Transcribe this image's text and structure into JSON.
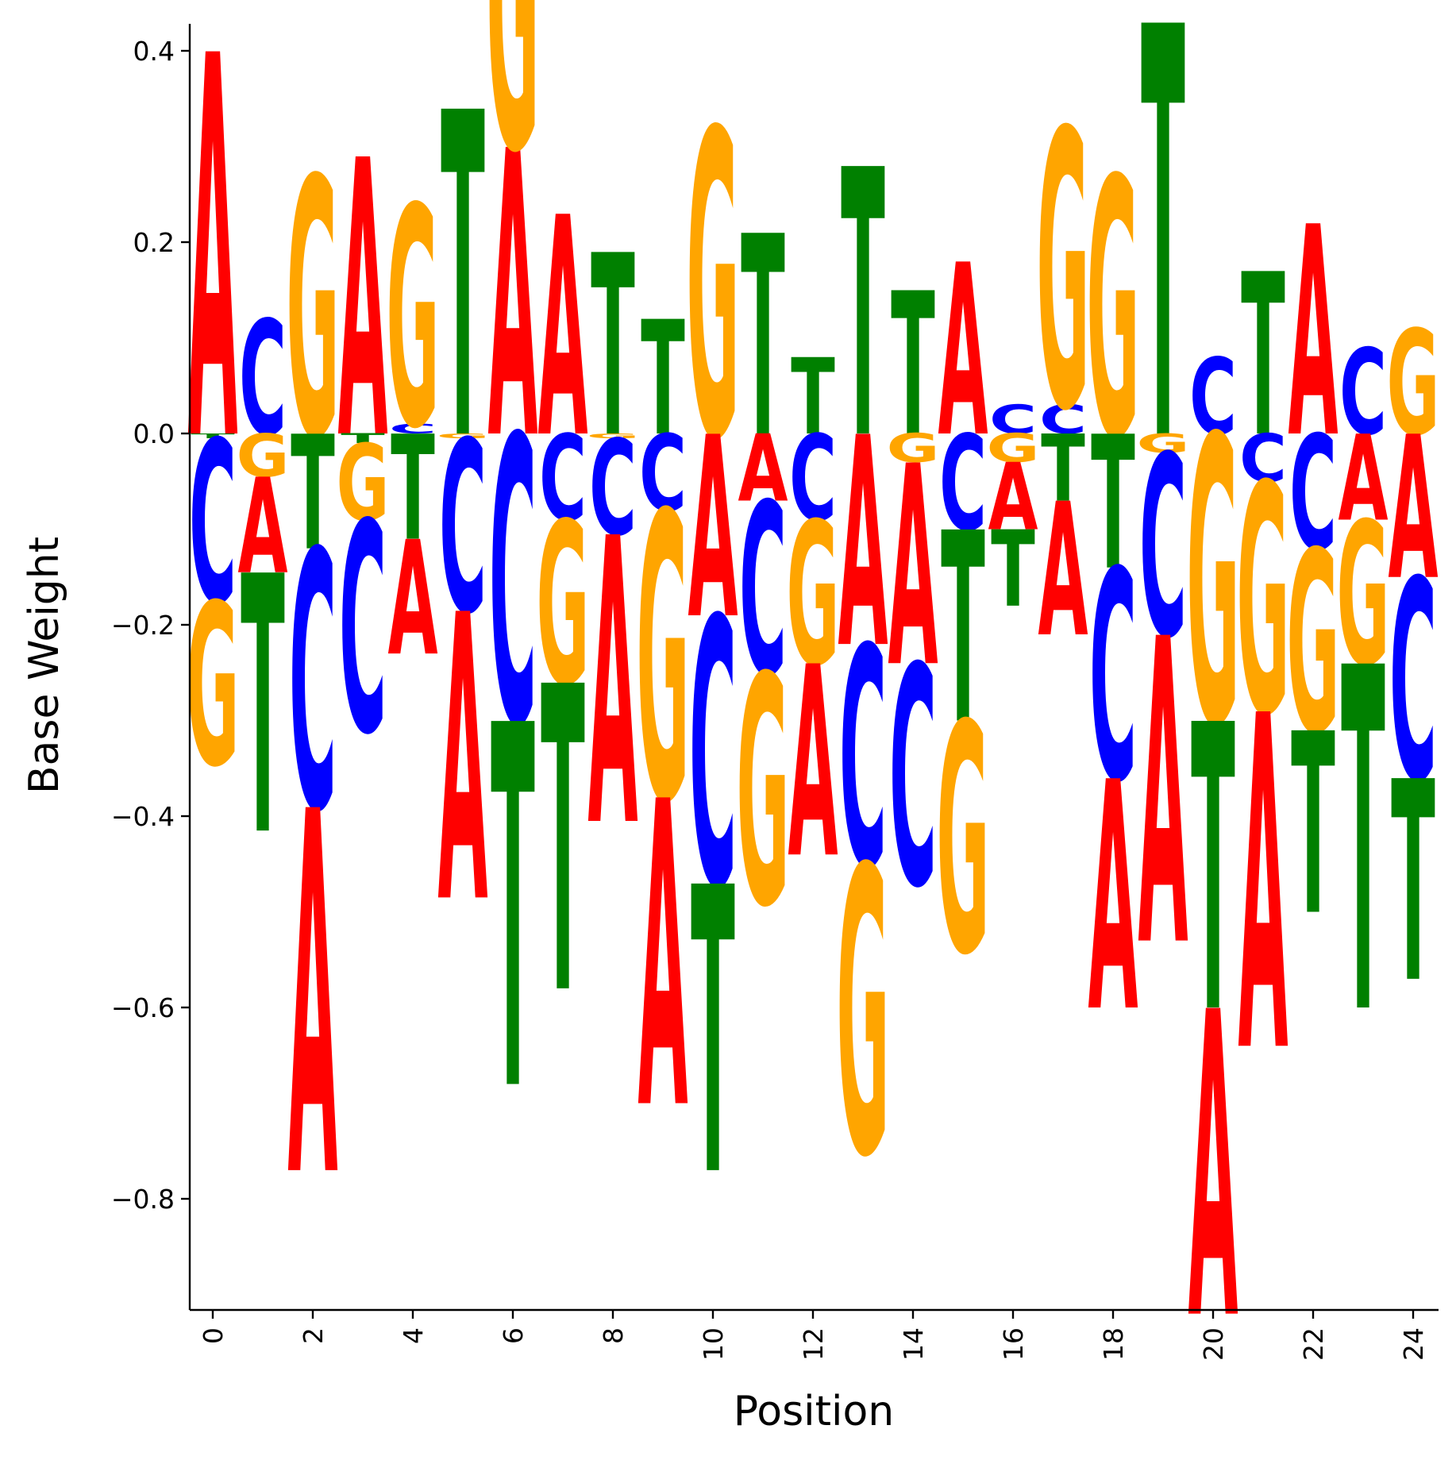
{
  "chart_data": {
    "type": "sequence-logo",
    "title": "",
    "xlabel": "Position",
    "ylabel": "Base Weight",
    "ylim": [
      -0.92,
      0.43
    ],
    "xlim": [
      -0.5,
      24.5
    ],
    "xticks": [
      "0",
      "2",
      "4",
      "6",
      "8",
      "10",
      "12",
      "14",
      "16",
      "18",
      "20",
      "22",
      "24"
    ],
    "yticks": [
      "0.4",
      "0.2",
      "0.0",
      "−0.2",
      "−0.4",
      "−0.6",
      "−0.8"
    ],
    "colors": {
      "A": "#ff0000",
      "C": "#0000ff",
      "G": "#ffa500",
      "T": "#008000"
    },
    "positions": [
      {
        "A": 0.4,
        "C": -0.17,
        "G": -0.17,
        "T": -0.005
      },
      {
        "A": -0.1,
        "C": 0.12,
        "G": -0.045,
        "T": -0.27
      },
      {
        "A": -0.38,
        "C": -0.27,
        "G": 0.27,
        "T": -0.12
      },
      {
        "A": 0.29,
        "C": -0.22,
        "G": -0.08,
        "T": -0.01
      },
      {
        "A": -0.12,
        "C": 0.01,
        "G": 0.23,
        "T": -0.11
      },
      {
        "A": -0.3,
        "C": -0.18,
        "G": -0.005,
        "T": 0.34
      },
      {
        "A": 0.3,
        "C": -0.3,
        "G": 0.3,
        "T": -0.38
      },
      {
        "A": 0.23,
        "C": -0.09,
        "G": -0.17,
        "T": -0.32
      },
      {
        "A": -0.3,
        "C": -0.1,
        "G": -0.005,
        "T": 0.19
      },
      {
        "A": -0.32,
        "C": -0.08,
        "G": -0.3,
        "T": 0.12
      },
      {
        "A": -0.19,
        "C": -0.28,
        "G": 0.32,
        "T": -0.3
      },
      {
        "A": -0.07,
        "C": -0.18,
        "G": -0.24,
        "T": 0.21
      },
      {
        "A": -0.2,
        "C": -0.09,
        "G": -0.15,
        "T": 0.08
      },
      {
        "A": -0.22,
        "C": -0.23,
        "G": -0.3,
        "T": 0.28
      },
      {
        "A": -0.21,
        "C": -0.23,
        "G": -0.03,
        "T": 0.15
      },
      {
        "A": 0.18,
        "C": -0.1,
        "G": -0.24,
        "T": -0.2
      },
      {
        "A": -0.07,
        "C": 0.03,
        "G": -0.03,
        "T": -0.08
      },
      {
        "A": -0.14,
        "C": 0.03,
        "G": 0.29,
        "T": -0.07
      },
      {
        "A": -0.24,
        "C": -0.22,
        "G": 0.27,
        "T": -0.14
      },
      {
        "A": -0.32,
        "C": -0.19,
        "G": -0.02,
        "T": 0.43
      },
      {
        "A": -0.32,
        "C": 0.08,
        "G": -0.3,
        "T": -0.3
      },
      {
        "A": -0.35,
        "C": -0.05,
        "G": -0.24,
        "T": 0.17
      },
      {
        "A": 0.22,
        "C": -0.12,
        "G": -0.19,
        "T": -0.19
      },
      {
        "A": -0.09,
        "C": 0.09,
        "G": -0.15,
        "T": -0.36
      },
      {
        "A": -0.15,
        "C": -0.21,
        "G": 0.11,
        "T": -0.21
      }
    ]
  }
}
